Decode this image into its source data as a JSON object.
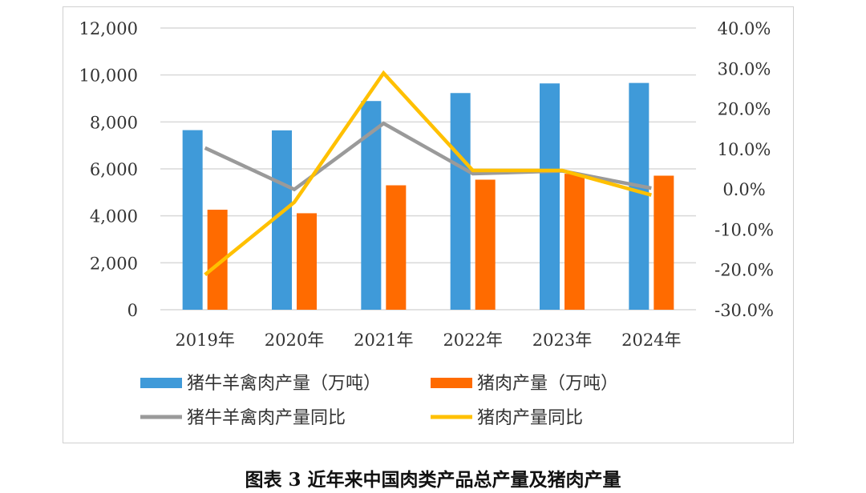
{
  "chart_data": {
    "type": "bar",
    "categories": [
      "2019年",
      "2020年",
      "2021年",
      "2022年",
      "2023年",
      "2024年"
    ],
    "series": [
      {
        "name": "猪牛羊禽肉产量（万吨）",
        "type": "bar",
        "axis": "left",
        "color": "#3f9ad9",
        "values": [
          7650,
          7640,
          8890,
          9230,
          9640,
          9660
        ]
      },
      {
        "name": "猪肉产量（万吨）",
        "type": "bar",
        "axis": "left",
        "color": "#ff6b00",
        "values": [
          4260,
          4110,
          5300,
          5540,
          5790,
          5710
        ]
      },
      {
        "name": "猪牛羊禽肉产量同比",
        "type": "line",
        "axis": "right",
        "color": "#9a9a9a",
        "values": [
          10.2,
          -0.1,
          16.3,
          3.8,
          4.5,
          0.2
        ]
      },
      {
        "name": "猪肉产量同比",
        "type": "line",
        "axis": "right",
        "color": "#ffc000",
        "values": [
          -21.3,
          -3.3,
          28.8,
          4.6,
          4.6,
          -1.5
        ]
      }
    ],
    "y_left": {
      "min": 0,
      "max": 12000,
      "ticks": [
        "0",
        "2,000",
        "4,000",
        "6,000",
        "8,000",
        "10,000",
        "12,000"
      ]
    },
    "y_right": {
      "min": -30,
      "max": 40,
      "ticks": [
        "-30.0%",
        "-20.0%",
        "-10.0%",
        "0.0%",
        "10.0%",
        "20.0%",
        "30.0%",
        "40.0%"
      ]
    },
    "grid": true,
    "legend_position": "bottom"
  },
  "caption": "图表 3  近年来中国肉类产品总产量及猪肉产量"
}
